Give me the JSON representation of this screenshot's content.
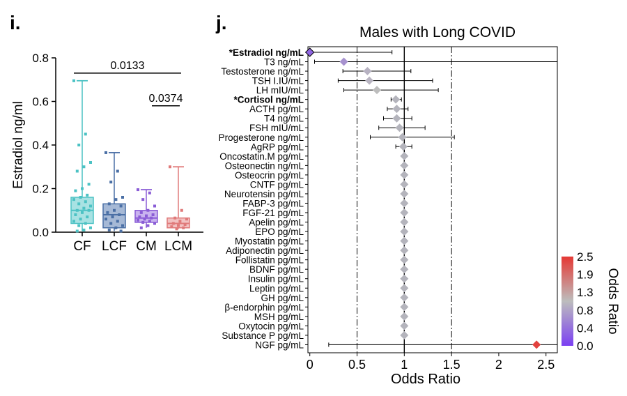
{
  "chart_data": [
    {
      "panel": "i.",
      "type": "box",
      "ylabel": "Estradiol ng/ml",
      "ylim": [
        0,
        0.8
      ],
      "yticks": [
        "0.0",
        "0.2",
        "0.4",
        "0.6",
        "0.8"
      ],
      "categories": [
        "CF",
        "LCF",
        "CM",
        "LCM"
      ],
      "colors": [
        "#4cc2c4",
        "#4a6fa5",
        "#8a5cd6",
        "#e07a7a"
      ],
      "fills": [
        "#a8e2e3",
        "#a6b9d6",
        "#c9b3ef",
        "#f2c2c2"
      ],
      "boxes": [
        {
          "min": 0.005,
          "q1": 0.04,
          "median": 0.1,
          "q3": 0.16,
          "max": 0.695
        },
        {
          "min": 0.005,
          "q1": 0.02,
          "median": 0.08,
          "q3": 0.13,
          "max": 0.365
        },
        {
          "min": 0.02,
          "q1": 0.045,
          "median": 0.065,
          "q3": 0.1,
          "max": 0.195
        },
        {
          "min": 0.015,
          "q1": 0.02,
          "median": 0.04,
          "q3": 0.065,
          "max": 0.3
        }
      ],
      "points": [
        [
          0.695,
          0.45,
          0.4,
          0.32,
          0.3,
          0.28,
          0.22,
          0.2,
          0.19,
          0.17,
          0.16,
          0.15,
          0.14,
          0.13,
          0.12,
          0.11,
          0.1,
          0.1,
          0.09,
          0.08,
          0.07,
          0.06,
          0.05,
          0.04,
          0.03,
          0.02,
          0.01,
          0.005
        ],
        [
          0.365,
          0.28,
          0.23,
          0.16,
          0.15,
          0.13,
          0.12,
          0.1,
          0.09,
          0.08,
          0.07,
          0.06,
          0.05,
          0.04,
          0.03,
          0.02,
          0.01,
          0.005
        ],
        [
          0.195,
          0.18,
          0.15,
          0.12,
          0.1,
          0.09,
          0.08,
          0.075,
          0.07,
          0.065,
          0.06,
          0.055,
          0.05,
          0.045,
          0.04,
          0.03,
          0.02
        ],
        [
          0.3,
          0.1,
          0.065,
          0.06,
          0.05,
          0.04,
          0.035,
          0.03,
          0.025,
          0.02,
          0.015
        ]
      ],
      "comparisons": [
        {
          "from": "CF",
          "to": "LCM",
          "label": "0.0133",
          "y": 0.73
        },
        {
          "from": "CM",
          "to": "LCM",
          "label": "0.0374",
          "y": 0.58
        }
      ]
    },
    {
      "panel": "j.",
      "type": "forest",
      "title": "Males with Long COVID",
      "xlabel": "Odds Ratio",
      "xlim": [
        -0.02,
        2.62
      ],
      "xticks": [
        "0",
        "0.5",
        "1",
        "1.5",
        "2",
        "2.5"
      ],
      "ref_lines": [
        0.5,
        1,
        1.5
      ],
      "rows": [
        {
          "label": "*Estradiol ng/mL",
          "bold": true,
          "or": 0.0,
          "lo": 0.0,
          "hi": 0.87
        },
        {
          "label": "T3 ng/mL",
          "or": 0.36,
          "lo": 0.05,
          "hi": 2.62
        },
        {
          "label": "Testosterone ng/mL",
          "or": 0.61,
          "lo": 0.35,
          "hi": 1.07
        },
        {
          "label": "TSH I.IU/mL",
          "or": 0.63,
          "lo": 0.3,
          "hi": 1.3
        },
        {
          "label": "LH mIU/mL",
          "or": 0.71,
          "lo": 0.36,
          "hi": 1.36
        },
        {
          "label": "*Cortisol ng/mL",
          "bold": true,
          "or": 0.91,
          "lo": 0.86,
          "hi": 0.97
        },
        {
          "label": "ACTH pg/mL",
          "or": 0.92,
          "lo": 0.82,
          "hi": 1.04
        },
        {
          "label": "T4 ng/mL",
          "or": 0.92,
          "lo": 0.78,
          "hi": 1.08
        },
        {
          "label": "FSH mIU/mL",
          "or": 0.95,
          "lo": 0.73,
          "hi": 1.22
        },
        {
          "label": "Progesterone ng/mL",
          "or": 0.98,
          "lo": 0.64,
          "hi": 1.53
        },
        {
          "label": "AgRP pg/mL",
          "or": 0.99,
          "lo": 0.91,
          "hi": 1.08
        },
        {
          "label": "Oncostatin.M pg/mL",
          "or": 1.0,
          "lo": 1.0,
          "hi": 1.0
        },
        {
          "label": "Osteonectin ng/mL",
          "or": 1.0,
          "lo": 1.0,
          "hi": 1.0
        },
        {
          "label": "Osteocrin pg/mL",
          "or": 1.0,
          "lo": 1.0,
          "hi": 1.0
        },
        {
          "label": "CNTF pg/mL",
          "or": 1.0,
          "lo": 1.0,
          "hi": 1.0
        },
        {
          "label": "Neurotensin pg/mL",
          "or": 1.0,
          "lo": 1.0,
          "hi": 1.0
        },
        {
          "label": "FABP-3 pg/mL",
          "or": 1.0,
          "lo": 1.0,
          "hi": 1.0
        },
        {
          "label": "FGF-21 pg/mL",
          "or": 1.0,
          "lo": 1.0,
          "hi": 1.0
        },
        {
          "label": "Apelin pg/mL",
          "or": 1.0,
          "lo": 1.0,
          "hi": 1.0
        },
        {
          "label": "EPO pg/mL",
          "or": 1.0,
          "lo": 1.0,
          "hi": 1.0
        },
        {
          "label": "Myostatin pg/mL",
          "or": 1.0,
          "lo": 1.0,
          "hi": 1.0
        },
        {
          "label": "Adiponectin pg/mL",
          "or": 1.0,
          "lo": 1.0,
          "hi": 1.0
        },
        {
          "label": "Follistatin pg/mL",
          "or": 1.0,
          "lo": 1.0,
          "hi": 1.0
        },
        {
          "label": "BDNF pg/mL",
          "or": 1.0,
          "lo": 1.0,
          "hi": 1.0
        },
        {
          "label": "Insulin pg/mL",
          "or": 1.0,
          "lo": 1.0,
          "hi": 1.0
        },
        {
          "label": "Leptin pg/mL",
          "or": 1.0,
          "lo": 1.0,
          "hi": 1.0
        },
        {
          "label": "GH pg/mL",
          "or": 1.0,
          "lo": 1.0,
          "hi": 1.0
        },
        {
          "label": "β-endorphin pg/mL",
          "or": 1.0,
          "lo": 1.0,
          "hi": 1.0
        },
        {
          "label": "MSH pg/mL",
          "or": 1.0,
          "lo": 1.0,
          "hi": 1.0
        },
        {
          "label": "Oxytocin pg/mL",
          "or": 1.0,
          "lo": 1.0,
          "hi": 1.0
        },
        {
          "label": "Substance P pg/mL",
          "or": 1.0,
          "lo": 1.0,
          "hi": 1.0
        },
        {
          "label": "NGF pg/mL",
          "or": 2.4,
          "lo": 0.2,
          "hi": 2.62
        }
      ],
      "colorbar": {
        "label": "Odds Ratio",
        "ticks": [
          "2.5",
          "1.9",
          "1.3",
          "0.8",
          "0.4",
          "0.0"
        ],
        "range": [
          0,
          2.5
        ],
        "colors": {
          "low": "#7b3ff2",
          "mid": "#bdbdbd",
          "high": "#e53935"
        }
      }
    }
  ]
}
